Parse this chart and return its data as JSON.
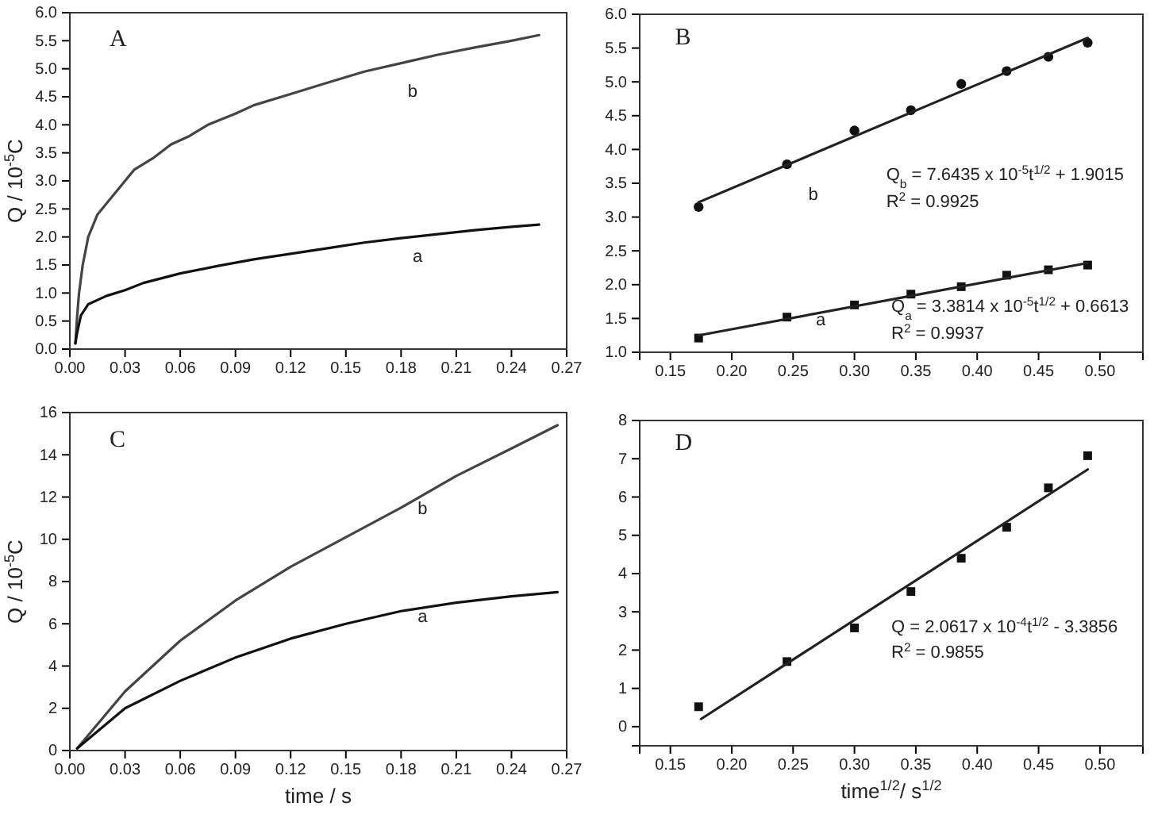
{
  "chart_data": [
    {
      "type": "line",
      "ylabel": "Q / 10$^{-5}$C",
      "xlim": [
        0,
        0.27
      ],
      "ylim": [
        0,
        6
      ],
      "xticks": [
        {
          "value": 0,
          "label": "0.00"
        },
        0.03,
        0.06,
        0.09,
        0.12,
        0.15,
        0.18,
        0.21,
        0.24,
        0.27
      ],
      "yticks": [
        {
          "value": 0,
          "label": "0.0"
        },
        0.5,
        {
          "value": 1,
          "label": "1.0"
        },
        1.5,
        {
          "value": 2,
          "label": "2.0"
        },
        2.5,
        {
          "value": 3,
          "label": "3.0"
        },
        3.5,
        {
          "value": 4,
          "label": "4.0"
        },
        4.5,
        {
          "value": 5,
          "label": "5.0"
        },
        5.5,
        {
          "value": 6,
          "label": "6.0"
        }
      ],
      "grid": false,
      "annotations": [
        "A",
        "b",
        "a"
      ],
      "series": [
        {
          "color": "#444444",
          "marker": "none",
          "x": [
            0.003,
            0.004,
            0.005,
            0.007,
            0.01,
            0.015,
            0.02,
            0.03,
            0.035,
            0.045,
            0.055,
            0.065,
            0.075,
            0.09,
            0.1,
            0.12,
            0.14,
            0.16,
            0.18,
            0.2,
            0.22,
            0.24,
            0.255
          ],
          "values": [
            0.1,
            0.6,
            1.0,
            1.5,
            2.0,
            2.4,
            2.6,
            3.0,
            3.2,
            3.4,
            3.65,
            3.8,
            4.0,
            4.2,
            4.35,
            4.55,
            4.75,
            4.95,
            5.1,
            5.25,
            5.38,
            5.5,
            5.6
          ]
        },
        {
          "color": "#111111",
          "marker": "none",
          "x": [
            0.003,
            0.004,
            0.006,
            0.01,
            0.02,
            0.03,
            0.04,
            0.06,
            0.08,
            0.1,
            0.12,
            0.14,
            0.16,
            0.18,
            0.2,
            0.22,
            0.24,
            0.255
          ],
          "values": [
            0.1,
            0.3,
            0.6,
            0.8,
            0.95,
            1.05,
            1.18,
            1.35,
            1.48,
            1.6,
            1.7,
            1.8,
            1.9,
            1.98,
            2.05,
            2.12,
            2.18,
            2.22
          ]
        }
      ]
    },
    {
      "type": "scatter",
      "xlim": [
        0.125,
        0.535
      ],
      "ylim": [
        1,
        6
      ],
      "xticks": [
        0.15,
        {
          "value": 0.2,
          "label": "0.20"
        },
        0.25,
        {
          "value": 0.3,
          "label": "0.30"
        },
        0.35,
        {
          "value": 0.4,
          "label": "0.40"
        },
        0.45,
        {
          "value": 0.5,
          "label": "0.50"
        }
      ],
      "yticks": [
        {
          "value": 1,
          "label": "1.0"
        },
        1.5,
        {
          "value": 2,
          "label": "2.0"
        },
        2.5,
        {
          "value": 3,
          "label": "3.0"
        },
        3.5,
        {
          "value": 4,
          "label": "4.0"
        },
        4.5,
        {
          "value": 5,
          "label": "5.0"
        },
        5.5,
        {
          "value": 6,
          "label": "6.0"
        }
      ],
      "grid": false,
      "annotations": [
        "B",
        "Q$_{b}$ = 7.6435 x 10$^{-5}$t$^{1/2}$ + 1.9015",
        "R$^{2}$ = 0.9925",
        "Q$_{a}$ = 3.3814 x 10$^{-5}$t$^{1/2}$ + 0.6613",
        "R$^{2}$ = 0.9937",
        "b",
        "a"
      ],
      "series": [
        {
          "color": "#111111",
          "marker": "circle",
          "x": [
            0.173,
            0.245,
            0.3,
            0.346,
            0.387,
            0.424,
            0.458,
            0.49
          ],
          "values": [
            3.15,
            3.78,
            4.28,
            4.58,
            4.97,
            5.16,
            5.37,
            5.58
          ]
        },
        {
          "color": "#111111",
          "marker": "square",
          "x": [
            0.173,
            0.245,
            0.3,
            0.346,
            0.387,
            0.424,
            0.458,
            0.49
          ],
          "values": [
            1.21,
            1.52,
            1.7,
            1.86,
            1.97,
            2.14,
            2.22,
            2.29
          ]
        },
        {
          "type": "line",
          "color": "#222222",
          "marker": "none",
          "x": [
            0.173,
            0.49
          ],
          "values": [
            3.22,
            5.65
          ]
        },
        {
          "type": "line",
          "color": "#222222",
          "marker": "none",
          "x": [
            0.173,
            0.49
          ],
          "values": [
            1.25,
            2.32
          ]
        }
      ]
    },
    {
      "type": "line",
      "ylabel": "Q / 10$^{-5}$C",
      "xlabel": "time / s",
      "xlim": [
        0,
        0.27
      ],
      "ylim": [
        0,
        16
      ],
      "xticks": [
        {
          "value": 0,
          "label": "0.00"
        },
        0.03,
        0.06,
        0.09,
        0.12,
        0.15,
        0.18,
        0.21,
        0.24,
        0.27
      ],
      "yticks": [
        0,
        2,
        4,
        6,
        8,
        10,
        12,
        14,
        16
      ],
      "grid": false,
      "annotations": [
        "C",
        "b",
        "a"
      ],
      "series": [
        {
          "color": "#444444",
          "marker": "none",
          "x": [
            0.004,
            0.03,
            0.06,
            0.09,
            0.12,
            0.15,
            0.18,
            0.21,
            0.24,
            0.265
          ],
          "values": [
            0.1,
            2.8,
            5.2,
            7.1,
            8.7,
            10.1,
            11.5,
            13.0,
            14.3,
            15.4
          ]
        },
        {
          "color": "#111111",
          "marker": "none",
          "x": [
            0.004,
            0.03,
            0.06,
            0.09,
            0.12,
            0.15,
            0.18,
            0.21,
            0.24,
            0.265
          ],
          "values": [
            0.1,
            2.0,
            3.3,
            4.4,
            5.3,
            6.0,
            6.6,
            7.0,
            7.3,
            7.5
          ]
        }
      ]
    },
    {
      "type": "scatter",
      "xlabel": "time$^{1/2}$/ s$^{1/2}$",
      "xlim": [
        0.125,
        0.535
      ],
      "ylim": [
        -0.5,
        8
      ],
      "xticks": [
        0.15,
        {
          "value": 0.2,
          "label": "0.20"
        },
        0.25,
        {
          "value": 0.3,
          "label": "0.30"
        },
        0.35,
        {
          "value": 0.4,
          "label": "0.40"
        },
        0.45,
        {
          "value": 0.5,
          "label": "0.50"
        }
      ],
      "yticks": [
        0,
        1,
        2,
        3,
        4,
        5,
        6,
        7,
        8
      ],
      "grid": false,
      "annotations": [
        "D",
        "Q = 2.0617 x 10$^{-4}$t$^{1/2}$ - 3.3856",
        "R$^{2}$ = 0.9855"
      ],
      "series": [
        {
          "color": "#111111",
          "marker": "square",
          "x": [
            0.173,
            0.245,
            0.3,
            0.346,
            0.387,
            0.424,
            0.458,
            0.49
          ],
          "values": [
            0.52,
            1.7,
            2.58,
            3.53,
            4.4,
            5.21,
            6.24,
            7.08
          ]
        },
        {
          "type": "line",
          "color": "#222222",
          "marker": "none",
          "x": [
            0.175,
            0.49
          ],
          "values": [
            0.2,
            6.72
          ]
        }
      ]
    }
  ]
}
